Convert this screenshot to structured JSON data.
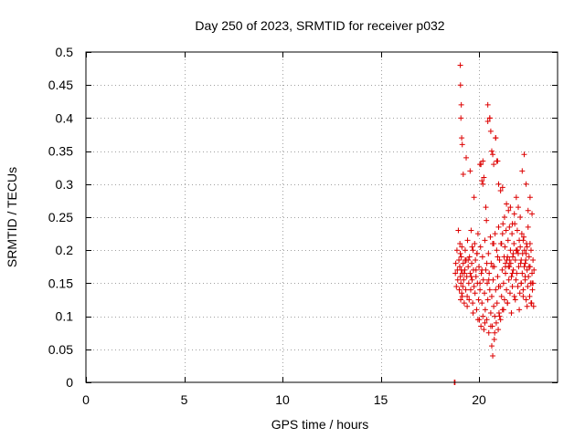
{
  "colors": {
    "series": "#dd0000",
    "axis": "#000000",
    "grid": "#a0a0a0",
    "background": "#ffffff"
  },
  "chart_data": {
    "type": "scatter",
    "title": "Day 250 of 2023, SRMTID for receiver p032",
    "xlabel": "GPS time / hours",
    "ylabel": "SRMTID / TECUs",
    "xlim": [
      0,
      24
    ],
    "ylim": [
      0,
      0.5
    ],
    "xticks": [
      "0",
      "5",
      "10",
      "15",
      "20"
    ],
    "yticks": [
      "0",
      "0.05",
      "0.1",
      "0.15",
      "0.2",
      "0.25",
      "0.3",
      "0.35",
      "0.4",
      "0.45",
      "0.5"
    ],
    "grid": true,
    "marker": "+",
    "series": [
      {
        "name": "SRMTID",
        "x": [
          18.75,
          18.78,
          18.8,
          18.82,
          18.85,
          18.88,
          18.9,
          18.92,
          18.95,
          18.98,
          19.0,
          19.02,
          19.03,
          19.05,
          19.05,
          19.07,
          19.08,
          19.1,
          19.1,
          19.12,
          19.13,
          19.15,
          19.18,
          19.2,
          19.22,
          19.25,
          19.28,
          19.3,
          19.33,
          19.35,
          19.38,
          19.4,
          19.42,
          19.45,
          19.48,
          19.5,
          19.52,
          19.55,
          19.58,
          19.6,
          19.63,
          19.65,
          19.68,
          19.7,
          19.72,
          19.75,
          19.78,
          19.8,
          19.82,
          19.85,
          19.88,
          19.9,
          19.92,
          19.95,
          19.98,
          20.0,
          20.02,
          20.05,
          20.08,
          20.1,
          20.12,
          20.15,
          20.18,
          20.2,
          20.22,
          20.25,
          20.28,
          20.3,
          20.32,
          20.35,
          20.38,
          20.4,
          20.42,
          20.45,
          20.48,
          20.5,
          20.52,
          20.55,
          20.58,
          20.6,
          20.62,
          20.65,
          20.68,
          20.7,
          20.72,
          20.75,
          20.78,
          20.8,
          20.82,
          20.85,
          20.88,
          20.9,
          20.92,
          20.95,
          20.98,
          21.0,
          21.02,
          21.05,
          21.08,
          21.1,
          21.12,
          21.15,
          21.18,
          21.2,
          21.22,
          21.25,
          21.28,
          21.3,
          21.32,
          21.35,
          21.38,
          21.4,
          21.42,
          21.45,
          21.48,
          21.5,
          21.52,
          21.55,
          21.58,
          21.6,
          21.62,
          21.65,
          21.68,
          21.7,
          21.72,
          21.75,
          21.78,
          21.8,
          21.82,
          21.85,
          21.88,
          21.9,
          21.92,
          21.95,
          21.98,
          22.0,
          22.02,
          22.05,
          22.08,
          22.1,
          22.12,
          22.15,
          22.18,
          22.2,
          22.22,
          22.25,
          22.28,
          22.3,
          22.32,
          22.35,
          22.38,
          22.4,
          22.42,
          22.45,
          22.48,
          22.5,
          22.52,
          22.55,
          22.58,
          22.6,
          22.62,
          22.65,
          22.68,
          22.7,
          22.72,
          22.75,
          22.78,
          22.8,
          19.05,
          19.06,
          19.1,
          19.08,
          19.12,
          19.15,
          19.2,
          19.35,
          19.55,
          19.75,
          20.1,
          20.2,
          20.25,
          20.35,
          20.45,
          20.55,
          20.6,
          20.65,
          20.75,
          20.85,
          20.9,
          21.0,
          21.1,
          21.2,
          21.3,
          21.4,
          21.5,
          21.6,
          21.7,
          21.8,
          21.9,
          22.0,
          22.1,
          22.2,
          22.3,
          22.4,
          22.5,
          22.6,
          22.7,
          19.25,
          19.45,
          19.65,
          19.85,
          20.05,
          20.4,
          20.7,
          20.95,
          21.15,
          21.35,
          21.55,
          21.75,
          21.95,
          22.15,
          22.35,
          22.55,
          22.75,
          19.15,
          19.4,
          19.7,
          19.95,
          20.3,
          20.6,
          20.8,
          21.05,
          21.25,
          21.45,
          21.65,
          21.85,
          22.05,
          22.25,
          22.45,
          22.65,
          19.3,
          19.6,
          19.9,
          20.15,
          20.5,
          20.75,
          21.0,
          21.2,
          21.45,
          21.7,
          21.9,
          22.15,
          22.35,
          22.6,
          20.65,
          20.7,
          20.78,
          21.35,
          21.55,
          22.25,
          22.4,
          22.45,
          22.7,
          20.05,
          20.15,
          20.2,
          20.45,
          20.55,
          20.7,
          20.85,
          20.95
        ],
        "y": [
          0.0,
          0.0,
          0.165,
          0.18,
          0.145,
          0.2,
          0.17,
          0.155,
          0.23,
          0.185,
          0.14,
          0.175,
          0.21,
          0.16,
          0.195,
          0.125,
          0.15,
          0.19,
          0.17,
          0.135,
          0.205,
          0.165,
          0.145,
          0.18,
          0.155,
          0.12,
          0.17,
          0.2,
          0.14,
          0.185,
          0.16,
          0.13,
          0.215,
          0.175,
          0.15,
          0.125,
          0.19,
          0.165,
          0.14,
          0.23,
          0.18,
          0.155,
          0.12,
          0.2,
          0.17,
          0.145,
          0.21,
          0.135,
          0.185,
          0.16,
          0.11,
          0.195,
          0.15,
          0.225,
          0.125,
          0.175,
          0.095,
          0.14,
          0.205,
          0.085,
          0.165,
          0.12,
          0.19,
          0.1,
          0.155,
          0.08,
          0.135,
          0.215,
          0.11,
          0.17,
          0.245,
          0.095,
          0.15,
          0.125,
          0.195,
          0.075,
          0.165,
          0.14,
          0.22,
          0.105,
          0.18,
          0.13,
          0.085,
          0.21,
          0.155,
          0.115,
          0.175,
          0.1,
          0.225,
          0.14,
          0.09,
          0.2,
          0.12,
          0.16,
          0.08,
          0.235,
          0.105,
          0.185,
          0.145,
          0.095,
          0.21,
          0.13,
          0.17,
          0.11,
          0.24,
          0.15,
          0.19,
          0.125,
          0.205,
          0.165,
          0.23,
          0.14,
          0.185,
          0.12,
          0.215,
          0.175,
          0.155,
          0.235,
          0.135,
          0.2,
          0.18,
          0.16,
          0.225,
          0.145,
          0.19,
          0.17,
          0.21,
          0.13,
          0.24,
          0.185,
          0.155,
          0.2,
          0.165,
          0.23,
          0.145,
          0.195,
          0.175,
          0.215,
          0.135,
          0.205,
          0.18,
          0.15,
          0.225,
          0.165,
          0.195,
          0.14,
          0.22,
          0.175,
          0.2,
          0.155,
          0.185,
          0.125,
          0.21,
          0.17,
          0.145,
          0.235,
          0.16,
          0.19,
          0.13,
          0.175,
          0.15,
          0.2,
          0.12,
          0.165,
          0.14,
          0.185,
          0.115,
          0.17,
          0.48,
          0.45,
          0.42,
          0.4,
          0.37,
          0.36,
          0.315,
          0.34,
          0.32,
          0.28,
          0.33,
          0.3,
          0.31,
          0.265,
          0.42,
          0.4,
          0.38,
          0.35,
          0.33,
          0.37,
          0.335,
          0.3,
          0.29,
          0.295,
          0.25,
          0.27,
          0.26,
          0.265,
          0.24,
          0.255,
          0.28,
          0.265,
          0.25,
          0.32,
          0.345,
          0.3,
          0.26,
          0.28,
          0.255,
          0.165,
          0.185,
          0.205,
          0.17,
          0.15,
          0.18,
          0.175,
          0.19,
          0.21,
          0.18,
          0.175,
          0.195,
          0.2,
          0.185,
          0.16,
          0.175,
          0.15,
          0.13,
          0.115,
          0.105,
          0.095,
          0.09,
          0.085,
          0.075,
          0.1,
          0.11,
          0.12,
          0.105,
          0.125,
          0.11,
          0.13,
          0.115,
          0.12,
          0.185,
          0.16,
          0.195,
          0.17,
          0.155,
          0.21,
          0.145,
          0.225,
          0.19,
          0.165,
          0.2,
          0.15,
          0.18,
          0.21,
          0.055,
          0.04,
          0.065,
          0.175,
          0.185,
          0.215,
          0.195,
          0.205,
          0.15,
          0.33,
          0.305,
          0.335,
          0.395,
          0.4,
          0.345,
          0.37,
          0.335
        ]
      }
    ]
  }
}
